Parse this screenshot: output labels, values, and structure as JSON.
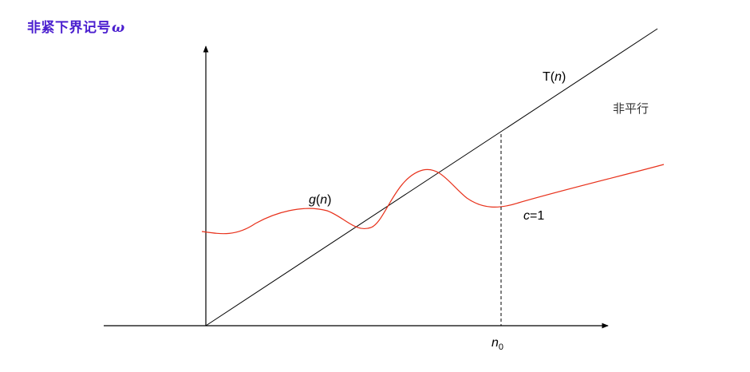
{
  "slide": {
    "title_text": "非紧下界记号",
    "title_symbol": "ω",
    "title_color": "#4b1fcf"
  },
  "diagram": {
    "line_label": {
      "func": "T",
      "open": "(",
      "var": "n",
      "close": ")"
    },
    "curve_label": {
      "func": "g",
      "open": "(",
      "var": "n",
      "close": ")"
    },
    "constant_label": {
      "var": "c",
      "rest": "=1"
    },
    "threshold_label": {
      "var": "n",
      "subscript": "0"
    },
    "side_note": "非平行",
    "colors": {
      "line": "#000000",
      "curve": "#e8321c",
      "axes": "#000000"
    }
  }
}
